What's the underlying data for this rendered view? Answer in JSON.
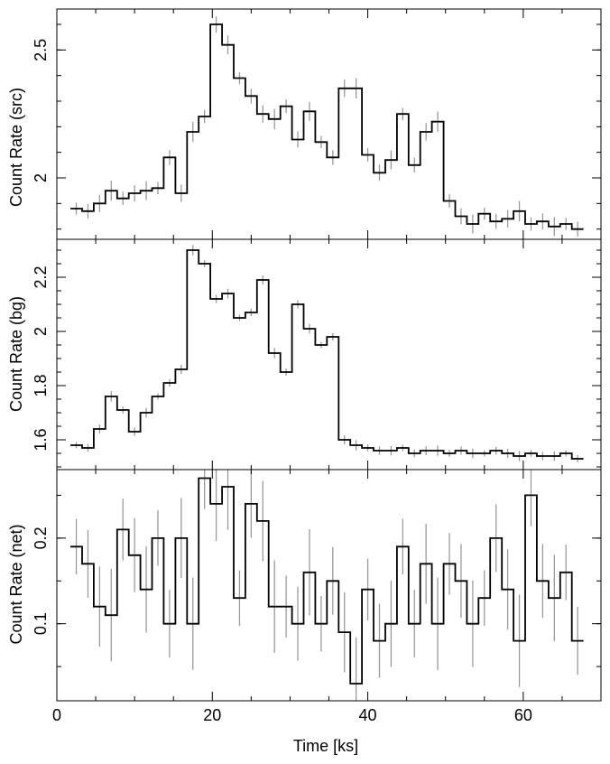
{
  "chart_data": [
    {
      "type": "line",
      "style": "step-histogram with error bars",
      "ylabel": "Count Rate (src)",
      "ylim": [
        1.76,
        2.66
      ],
      "yticks": [
        2,
        2.5
      ],
      "yticklabels": [
        "2",
        "2.5"
      ],
      "ytick_minor_step": 0.1,
      "x": [
        2.5,
        4,
        5.5,
        7,
        8.5,
        10,
        11.5,
        13,
        14.5,
        16,
        17.5,
        19,
        20.5,
        22,
        23.5,
        25,
        26.5,
        28,
        29.5,
        31,
        32.5,
        34,
        35.5,
        37,
        38.5,
        40,
        41.5,
        43,
        44.5,
        46,
        47.5,
        49,
        50.5,
        52,
        53.5,
        55,
        56.5,
        58,
        59.5,
        61,
        62.5,
        64,
        65.5,
        67
      ],
      "values": [
        1.88,
        1.87,
        1.9,
        1.95,
        1.92,
        1.94,
        1.95,
        1.96,
        2.08,
        1.94,
        2.18,
        2.24,
        2.6,
        2.52,
        2.39,
        2.32,
        2.25,
        2.23,
        2.28,
        2.15,
        2.26,
        2.14,
        2.08,
        2.35,
        2.35,
        2.09,
        2.02,
        2.07,
        2.25,
        2.05,
        2.18,
        2.22,
        1.91,
        1.85,
        1.82,
        1.86,
        1.83,
        1.84,
        1.87,
        1.82,
        1.83,
        1.81,
        1.82,
        1.8
      ]
    },
    {
      "type": "line",
      "style": "step-histogram with error bars",
      "ylabel": "Count Rate (bg)",
      "ylim": [
        1.49,
        2.34
      ],
      "yticks": [
        1.6,
        1.8,
        2,
        2.2
      ],
      "yticklabels": [
        "1.6",
        "1.8",
        "2",
        "2.2"
      ],
      "ytick_minor_step": 0.05,
      "x": [
        2.5,
        4,
        5.5,
        7,
        8.5,
        10,
        11.5,
        13,
        14.5,
        16,
        17.5,
        19,
        20.5,
        22,
        23.5,
        25,
        26.5,
        28,
        29.5,
        31,
        32.5,
        34,
        35.5,
        37,
        38.5,
        40,
        41.5,
        43,
        44.5,
        46,
        47.5,
        49,
        50.5,
        52,
        53.5,
        55,
        56.5,
        58,
        59.5,
        61,
        62.5,
        64,
        65.5,
        67
      ],
      "values": [
        1.58,
        1.57,
        1.64,
        1.76,
        1.71,
        1.63,
        1.7,
        1.76,
        1.81,
        1.86,
        2.3,
        2.25,
        2.12,
        2.14,
        2.05,
        2.07,
        2.19,
        1.92,
        1.85,
        2.1,
        2.01,
        1.95,
        1.98,
        1.6,
        1.58,
        1.57,
        1.56,
        1.56,
        1.57,
        1.55,
        1.56,
        1.56,
        1.55,
        1.56,
        1.55,
        1.55,
        1.56,
        1.55,
        1.54,
        1.55,
        1.54,
        1.54,
        1.55,
        1.53
      ]
    },
    {
      "type": "line",
      "style": "step-histogram with error bars",
      "ylabel": "Count Rate (net)",
      "ylim": [
        0.01,
        0.28
      ],
      "yticks": [
        0.1,
        0.2
      ],
      "yticklabels": [
        "0.1",
        "0.2"
      ],
      "ytick_minor_step": 0.05,
      "xlabel": "Time [ks]",
      "xlim": [
        0,
        70
      ],
      "xticks": [
        0,
        20,
        40,
        60
      ],
      "xticklabels": [
        "0",
        "20",
        "40",
        "60"
      ],
      "xtick_minor_step": 5,
      "x": [
        2.5,
        4,
        5.5,
        7,
        8.5,
        10,
        11.5,
        13,
        14.5,
        16,
        17.5,
        19,
        20.5,
        22,
        23.5,
        25,
        26.5,
        28,
        29.5,
        31,
        32.5,
        34,
        35.5,
        37,
        38.5,
        40,
        41.5,
        43,
        44.5,
        46,
        47.5,
        49,
        50.5,
        52,
        53.5,
        55,
        56.5,
        58,
        59.5,
        61,
        62.5,
        64,
        65.5,
        67
      ],
      "values": [
        0.19,
        0.17,
        0.12,
        0.11,
        0.21,
        0.18,
        0.14,
        0.2,
        0.1,
        0.2,
        0.1,
        0.27,
        0.24,
        0.26,
        0.13,
        0.24,
        0.22,
        0.12,
        0.12,
        0.1,
        0.16,
        0.1,
        0.15,
        0.09,
        0.03,
        0.14,
        0.08,
        0.1,
        0.19,
        0.1,
        0.17,
        0.1,
        0.17,
        0.15,
        0.1,
        0.13,
        0.2,
        0.14,
        0.08,
        0.25,
        0.15,
        0.13,
        0.16,
        0.08
      ]
    }
  ]
}
